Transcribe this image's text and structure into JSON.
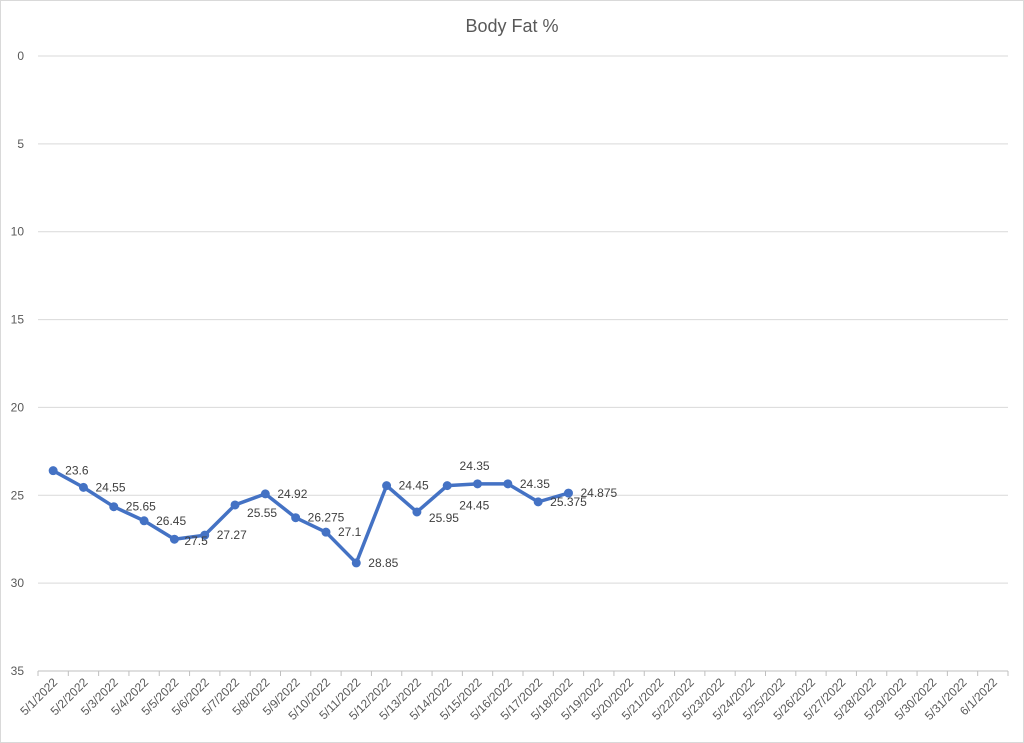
{
  "chart_data": {
    "type": "line",
    "title": "Body Fat %",
    "xlabel": "",
    "ylabel": "",
    "ylim": [
      0,
      35
    ],
    "y_reversed": true,
    "y_ticks": [
      0,
      5,
      10,
      15,
      20,
      25,
      30,
      35
    ],
    "grid": true,
    "legend": "none",
    "categories": [
      "5/1/2022",
      "5/2/2022",
      "5/3/2022",
      "5/4/2022",
      "5/5/2022",
      "5/6/2022",
      "5/7/2022",
      "5/8/2022",
      "5/9/2022",
      "5/10/2022",
      "5/11/2022",
      "5/12/2022",
      "5/13/2022",
      "5/14/2022",
      "5/15/2022",
      "5/16/2022",
      "5/17/2022",
      "5/18/2022",
      "5/19/2022",
      "5/20/2022",
      "5/21/2022",
      "5/22/2022",
      "5/23/2022",
      "5/24/2022",
      "5/25/2022",
      "5/26/2022",
      "5/27/2022",
      "5/28/2022",
      "5/29/2022",
      "5/30/2022",
      "5/31/2022",
      "6/1/2022"
    ],
    "series": [
      {
        "color": "#4472c4",
        "values": [
          23.6,
          24.55,
          25.65,
          26.45,
          27.5,
          27.27,
          25.55,
          24.92,
          26.275,
          27.1,
          28.85,
          24.45,
          25.95,
          24.45,
          24.35,
          24.35,
          25.375,
          24.875,
          null,
          null,
          null,
          null,
          null,
          null,
          null,
          null,
          null,
          null,
          null,
          null,
          null,
          null
        ]
      }
    ]
  }
}
